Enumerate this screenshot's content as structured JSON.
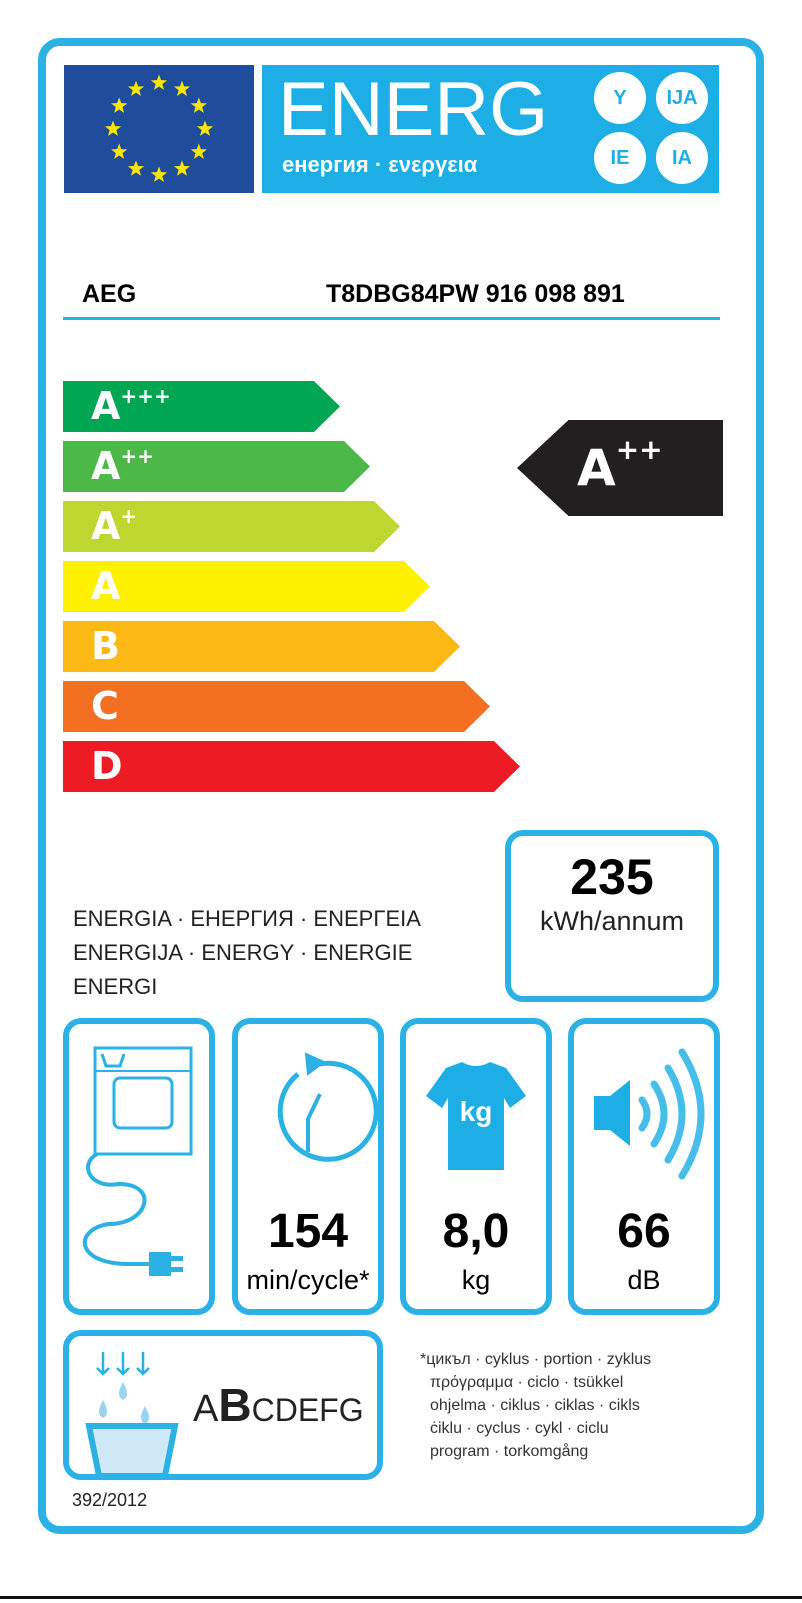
{
  "header": {
    "title": "ENERG",
    "subtitle": "енергия · ενεργεια",
    "suffixes": [
      "Y",
      "IJA",
      "IE",
      "IA"
    ]
  },
  "supplier": "AEG",
  "model": "T8DBG84PW  916 098 891",
  "scale": [
    {
      "letter": "A",
      "plus": "+++",
      "color": "#00a651"
    },
    {
      "letter": "A",
      "plus": "++",
      "color": "#4cb848"
    },
    {
      "letter": "A",
      "plus": "+",
      "color": "#bed630"
    },
    {
      "letter": "A",
      "plus": "",
      "color": "#fff200"
    },
    {
      "letter": "B",
      "plus": "",
      "color": "#fcb814"
    },
    {
      "letter": "C",
      "plus": "",
      "color": "#f36f21"
    },
    {
      "letter": "D",
      "plus": "",
      "color": "#ed1c24"
    }
  ],
  "rating": {
    "letter": "A",
    "plus": "++"
  },
  "energy_text": [
    "ENERGIA · ЕНЕРГИЯ · ΕΝΕΡΓΕΙΑ",
    "ENERGIJA · ENERGY · ENERGIE",
    "ENERGI"
  ],
  "consumption": {
    "value": "235",
    "unit": "kWh/annum"
  },
  "specs": {
    "cycle": {
      "value": "154",
      "unit": "min/cycle*"
    },
    "capacity": {
      "value": "8,0",
      "unit": "kg",
      "icon_label": "kg"
    },
    "noise": {
      "value": "66",
      "unit": "dB"
    }
  },
  "condensation": {
    "class_prefix": "A",
    "class_highlight": "B",
    "class_rest": "CDEFG"
  },
  "footnote": [
    "*цикъл · cyklus · portion · zyklus",
    "πρόγραμμα · ciclo · tsükkel",
    "ohjelma · ciklus · ciklas · cikls",
    "ċiklu · cyclus · cykl · ciclu",
    "program · torkomgång"
  ],
  "regulation": "392/2012",
  "colors": {
    "accent": "#2cb1e5",
    "eu_blue": "#1f4d9c",
    "eu_star": "#ffe600"
  }
}
